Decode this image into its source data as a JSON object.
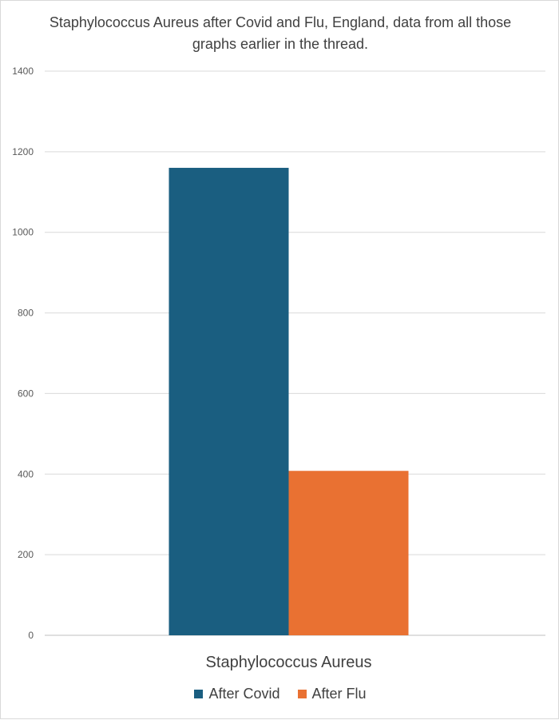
{
  "chart_data": {
    "type": "bar",
    "title": "Staphylococcus Aureus after Covid and Flu, England, data from all those graphs earlier in the thread.",
    "categories": [
      "Staphylococcus Aureus"
    ],
    "series": [
      {
        "name": "After Covid",
        "values": [
          1160
        ],
        "color": "#1a5e80"
      },
      {
        "name": "After Flu",
        "values": [
          408
        ],
        "color": "#e97132"
      }
    ],
    "y_ticks": [
      "0",
      "200",
      "400",
      "600",
      "800",
      "1000",
      "1200",
      "1400"
    ],
    "ylim": [
      0,
      1400
    ],
    "grid": true,
    "legend_position": "bottom"
  }
}
